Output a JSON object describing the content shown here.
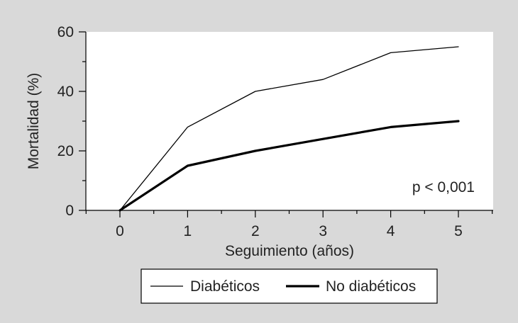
{
  "chart_data": {
    "type": "line",
    "title": "",
    "xlabel": "Seguimiento (años)",
    "ylabel": "Mortalidad (%)",
    "x": [
      0,
      1,
      2,
      3,
      4,
      5
    ],
    "x_tick_labels": [
      "0",
      "1",
      "2",
      "3",
      "4",
      "5"
    ],
    "y_ticks": [
      0,
      20,
      40,
      60
    ],
    "y_tick_labels": [
      "0",
      "20",
      "40",
      "60"
    ],
    "xlim": [
      -0.5,
      5.5
    ],
    "ylim": [
      0,
      60
    ],
    "grid": false,
    "legend_position": "bottom",
    "annotation": "p < 0,001",
    "series": [
      {
        "name": "Diabéticos",
        "values": [
          0,
          28,
          40,
          44,
          53,
          55
        ],
        "color": "#000000",
        "style": "thin"
      },
      {
        "name": "No diabéticos",
        "values": [
          0,
          15,
          20,
          24,
          28,
          30
        ],
        "color": "#000000",
        "style": "thick"
      }
    ]
  }
}
